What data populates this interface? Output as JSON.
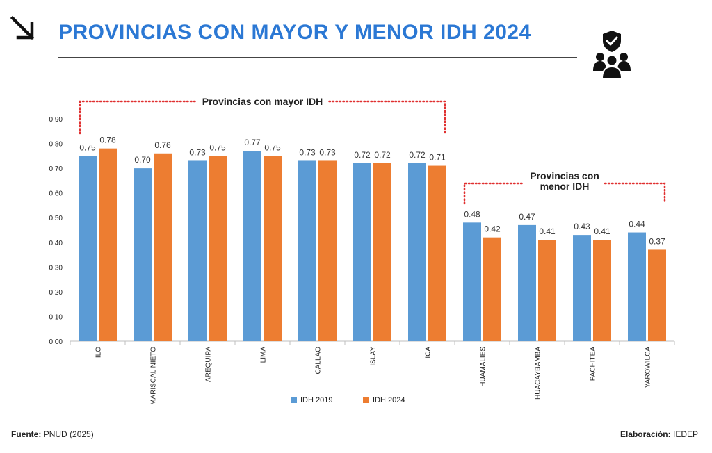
{
  "header": {
    "title": "PROVINCIAS CON MAYOR Y MENOR IDH 2024",
    "arrow_icon": "arrow-down-right-icon",
    "people_icon": "people-shield-icon"
  },
  "footer": {
    "source_label": "Fuente:",
    "source_value": "PNUD (2025)",
    "credit_label": "Elaboración:",
    "credit_value": "IEDEP"
  },
  "colors": {
    "title": "#2b78d4",
    "series_2019": "#5b9bd5",
    "series_2024": "#ed7d31",
    "bracket": "#e03030"
  },
  "chart_data": {
    "type": "bar",
    "categories": [
      "ILO",
      "MARISCAL NIETO",
      "AREQUIPA",
      "LIMA",
      "CALLAO",
      "ISLAY",
      "ICA",
      "HUAMALIES",
      "HUACAYBAMBA",
      "PACHITEA",
      "YAROWILCA"
    ],
    "series": [
      {
        "name": "IDH 2019",
        "values": [
          0.75,
          0.7,
          0.73,
          0.77,
          0.73,
          0.72,
          0.72,
          0.48,
          0.47,
          0.43,
          0.44
        ],
        "labels": [
          "0.75",
          "0.70",
          "0.73",
          "0.77",
          "0.73",
          "0.72",
          "0.72",
          "0.48",
          "0.47",
          "0.43",
          "0.44"
        ]
      },
      {
        "name": "IDH 2024",
        "values": [
          0.78,
          0.76,
          0.75,
          0.75,
          0.73,
          0.72,
          0.71,
          0.42,
          0.41,
          0.41,
          0.37
        ],
        "labels": [
          "0.78",
          "0.76",
          "0.75",
          "0.75",
          "0.73",
          "0.72",
          "0.71",
          "0.42",
          "0.41",
          "0.41",
          "0.37"
        ]
      }
    ],
    "ylim": [
      0,
      0.9
    ],
    "yticks": [
      "0.00",
      "0.10",
      "0.20",
      "0.30",
      "0.40",
      "0.50",
      "0.60",
      "0.70",
      "0.80",
      "0.90"
    ],
    "grid": false,
    "legend": "bottom-center",
    "annotations": [
      {
        "text": [
          "Provincias con mayor IDH"
        ],
        "spans_categories": [
          0,
          6
        ]
      },
      {
        "text": [
          "Provincias con",
          "menor IDH"
        ],
        "spans_categories": [
          7,
          10
        ]
      }
    ]
  }
}
